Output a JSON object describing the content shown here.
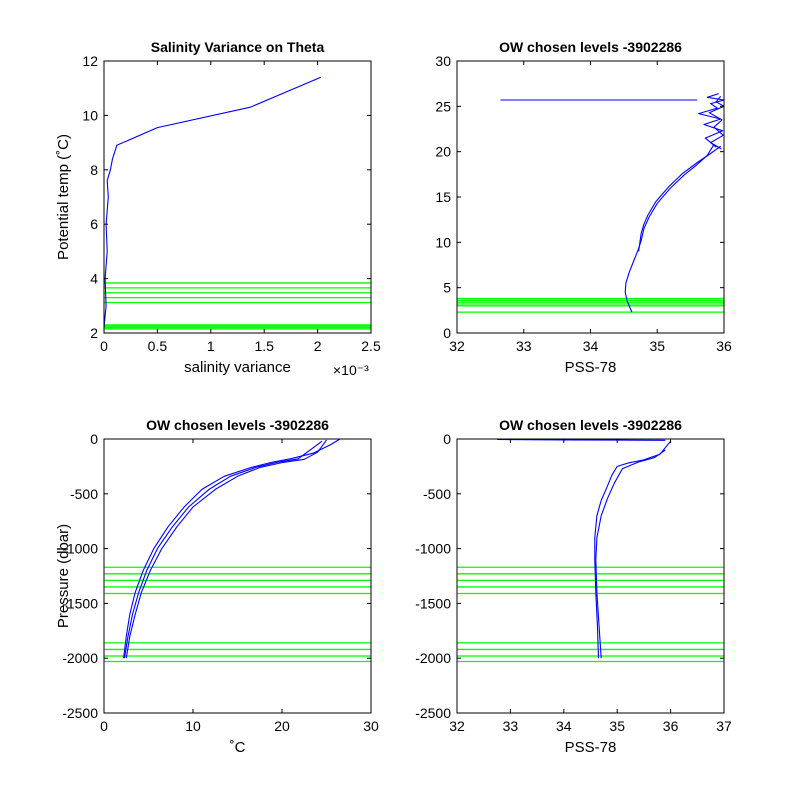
{
  "colors": {
    "profile": "#0000ff",
    "levels": "#00ff00",
    "axes": "#000000",
    "background": "#ffffff"
  },
  "chart_data": [
    {
      "id": "p1",
      "type": "line",
      "title": "Salinity Variance on Theta",
      "xlabel": "salinity variance",
      "ylabel": "Potential temp (˚C)",
      "xlim": [
        0,
        0.0025
      ],
      "ylim": [
        2,
        12
      ],
      "xticks": [
        0,
        0.0005,
        0.001,
        0.0015,
        0.002,
        0.0025
      ],
      "xtick_labels": [
        "0",
        "0.5",
        "1",
        "1.5",
        "2",
        "2.5"
      ],
      "x_exponent_label": "×10⁻³",
      "yticks": [
        2,
        4,
        6,
        8,
        10,
        12
      ],
      "ytick_labels": [
        "2",
        "4",
        "6",
        "8",
        "10",
        "12"
      ],
      "series": [
        {
          "x": [
            0.0,
            2e-05,
            1e-05,
            3e-05,
            2e-05,
            4e-05,
            3e-05,
            6e-05,
            8e-05,
            0.00012,
            0.0005,
            0.00137,
            0.00203
          ],
          "y": [
            2.2,
            3.0,
            4.0,
            5.0,
            6.0,
            7.0,
            7.6,
            8.0,
            8.4,
            8.9,
            9.55,
            10.3,
            11.4
          ]
        }
      ],
      "hlines": [
        2.15,
        2.2,
        2.25,
        2.3,
        3.12,
        3.3,
        3.48,
        3.66,
        3.84
      ]
    },
    {
      "id": "p2",
      "type": "line",
      "title": "OW chosen levels -3902286",
      "xlabel": "PSS-78",
      "ylabel": "",
      "xlim": [
        32,
        36
      ],
      "ylim": [
        0,
        30
      ],
      "xticks": [
        32,
        33,
        34,
        35,
        36
      ],
      "xtick_labels": [
        "32",
        "33",
        "34",
        "35",
        "36"
      ],
      "yticks": [
        0,
        5,
        10,
        15,
        20,
        25,
        30
      ],
      "ytick_labels": [
        "0",
        "5",
        "10",
        "15",
        "20",
        "25",
        "30"
      ],
      "series": [
        {
          "x": [
            34.62,
            34.55,
            34.52,
            34.53,
            34.58,
            34.65,
            34.72,
            34.76,
            34.8,
            34.88,
            35.0,
            35.2,
            35.4,
            35.6,
            35.75,
            35.85
          ],
          "y": [
            2.3,
            3.5,
            4.5,
            5.5,
            6.7,
            8.0,
            9.3,
            10.2,
            11.5,
            12.8,
            14.3,
            16.0,
            17.4,
            18.6,
            19.6,
            20.8
          ]
        },
        {
          "x": [
            34.72,
            34.74,
            34.76,
            34.8,
            34.86,
            34.98,
            35.18,
            35.38,
            35.6,
            35.8,
            35.95
          ],
          "y": [
            9.0,
            10.0,
            11.0,
            12.0,
            13.0,
            14.5,
            16.2,
            17.6,
            18.8,
            19.8,
            20.6
          ]
        },
        {
          "x": [
            35.88,
            35.72,
            35.98,
            35.7,
            35.95,
            35.62,
            35.9,
            35.8,
            36.0,
            35.75,
            35.92
          ],
          "y": [
            20.5,
            21.5,
            22.3,
            23.0,
            23.6,
            24.2,
            24.8,
            25.3,
            25.7,
            26.0,
            26.4
          ]
        },
        {
          "x": [
            35.96,
            35.8,
            35.99,
            35.85,
            35.97,
            35.78,
            36.0,
            35.88,
            35.95
          ],
          "y": [
            20.3,
            21.0,
            21.8,
            22.7,
            23.5,
            24.3,
            25.0,
            25.5,
            26.1
          ]
        },
        {
          "x": [
            32.65,
            35.6
          ],
          "y": [
            25.7,
            25.7
          ]
        }
      ],
      "hlines": [
        2.3,
        3.0,
        3.2,
        3.4,
        3.6,
        3.8
      ]
    },
    {
      "id": "p3",
      "type": "line",
      "title": "OW chosen levels -3902286",
      "xlabel": "˚C",
      "ylabel": "Pressure (dbar)",
      "xlim": [
        0,
        30
      ],
      "ylim": [
        -2500,
        0
      ],
      "xticks": [
        0,
        10,
        20,
        30
      ],
      "xtick_labels": [
        "0",
        "10",
        "20",
        "30"
      ],
      "yticks": [
        -2500,
        -2000,
        -1500,
        -1000,
        -500,
        0
      ],
      "ytick_labels": [
        "-2500",
        "-2000",
        "-1500",
        "-1000",
        "-500",
        "0"
      ],
      "series": [
        {
          "x": [
            2.2,
            2.5,
            2.9,
            3.5,
            4.4,
            5.6,
            7.2,
            9.0,
            11.0,
            13.5,
            16.5,
            19.0,
            21.0,
            23.5,
            25.5,
            26.5
          ],
          "y": [
            -2000,
            -1800,
            -1600,
            -1400,
            -1200,
            -1000,
            -800,
            -620,
            -460,
            -340,
            -260,
            -210,
            -180,
            -130,
            -50,
            0
          ]
        },
        {
          "x": [
            2.5,
            2.9,
            3.5,
            4.2,
            5.2,
            6.5,
            8.2,
            10.0,
            12.5,
            15.0,
            17.5,
            20.0,
            22.5,
            24.0,
            25.0
          ],
          "y": [
            -2000,
            -1800,
            -1600,
            -1400,
            -1200,
            -1000,
            -800,
            -620,
            -460,
            -340,
            -260,
            -215,
            -185,
            -120,
            -10
          ]
        },
        {
          "x": [
            2.3,
            2.7,
            3.2,
            3.9,
            4.8,
            6.0,
            7.7,
            9.5,
            11.8,
            14.2,
            17.0,
            19.5,
            21.8,
            23.0,
            24.5
          ],
          "y": [
            -2000,
            -1800,
            -1600,
            -1400,
            -1200,
            -1000,
            -800,
            -620,
            -460,
            -340,
            -260,
            -212,
            -182,
            -110,
            -20
          ]
        }
      ],
      "hlines": [
        -1170,
        -1230,
        -1290,
        -1350,
        -1410,
        -1860,
        -1920,
        -1980,
        -2030
      ]
    },
    {
      "id": "p4",
      "type": "line",
      "title": "OW chosen levels -3902286",
      "xlabel": "PSS-78",
      "ylabel": "",
      "xlim": [
        32,
        37
      ],
      "ylim": [
        -2500,
        0
      ],
      "xticks": [
        32,
        33,
        34,
        35,
        36,
        37
      ],
      "xtick_labels": [
        "32",
        "33",
        "34",
        "35",
        "36",
        "37"
      ],
      "yticks": [
        -2500,
        -2000,
        -1500,
        -1000,
        -500,
        0
      ],
      "ytick_labels": [
        "-2500",
        "-2000",
        "-1500",
        "-1000",
        "-500",
        "0"
      ],
      "series": [
        {
          "x": [
            34.65,
            34.63,
            34.6,
            34.58,
            34.58,
            34.62,
            34.7,
            34.8,
            34.9,
            35.0,
            35.2,
            35.5,
            35.8,
            36.0
          ],
          "y": [
            -2000,
            -1700,
            -1400,
            -1100,
            -900,
            -700,
            -560,
            -450,
            -330,
            -250,
            -220,
            -190,
            -140,
            -20
          ]
        },
        {
          "x": [
            34.7,
            34.66,
            34.62,
            34.6,
            34.62,
            34.7,
            34.82,
            34.95,
            35.1,
            35.4,
            35.7,
            35.9
          ],
          "y": [
            -2000,
            -1700,
            -1400,
            -1100,
            -900,
            -700,
            -540,
            -400,
            -270,
            -210,
            -170,
            -100
          ]
        },
        {
          "x": [
            32.75,
            34.0,
            35.0,
            35.9
          ],
          "y": [
            -5,
            -8,
            -10,
            -12
          ]
        }
      ],
      "hlines": [
        -1170,
        -1230,
        -1290,
        -1350,
        -1410,
        -1860,
        -1920,
        -1980,
        -2030
      ]
    }
  ]
}
